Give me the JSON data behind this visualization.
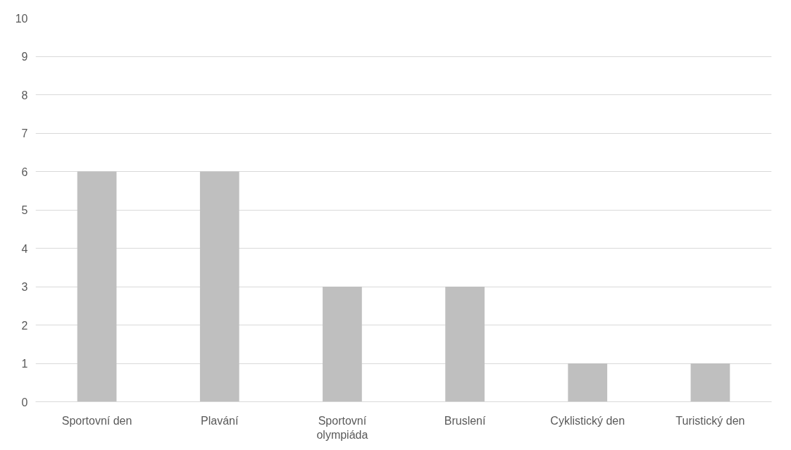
{
  "chart_data": {
    "type": "bar",
    "categories": [
      "Sportovní den",
      "Plavání",
      "Sportovní olympiáda",
      "Bruslení",
      "Cyklistický den",
      "Turistický den"
    ],
    "series": [
      {
        "color": "#bfbfbf",
        "values": [
          6,
          6,
          3,
          3,
          1,
          1
        ]
      }
    ],
    "ylim": [
      0,
      10
    ],
    "yticks": [
      0,
      1,
      2,
      3,
      4,
      5,
      6,
      7,
      8,
      9,
      10
    ],
    "grid": "y"
  }
}
